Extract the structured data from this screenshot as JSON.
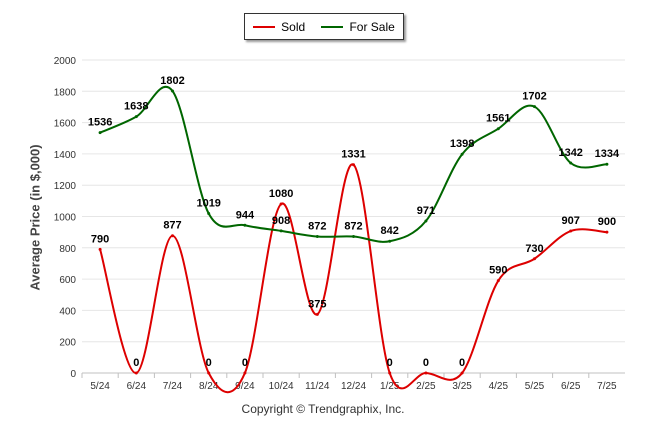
{
  "chart_data": {
    "type": "line",
    "categories": [
      "5/24",
      "6/24",
      "7/24",
      "8/24",
      "9/24",
      "10/24",
      "11/24",
      "12/24",
      "1/25",
      "2/25",
      "3/25",
      "4/25",
      "5/25",
      "6/25",
      "7/25"
    ],
    "ylabel": "Average Price (in $,000)",
    "ylim": [
      0,
      2000
    ],
    "yticks": [
      0,
      200,
      400,
      600,
      800,
      1000,
      1200,
      1400,
      1600,
      1800,
      2000
    ],
    "grid": true,
    "legend": "top-center",
    "series": [
      {
        "name": "Sold",
        "color": "#dd0000",
        "values": [
          790,
          0,
          877,
          0,
          0,
          1080,
          375,
          1331,
          0,
          0,
          0,
          590,
          730,
          907,
          900
        ],
        "labels": [
          "790",
          "0",
          "877",
          "0",
          "0",
          "1080",
          "375",
          "1331",
          "0",
          "0",
          "0",
          "590",
          "730",
          "907",
          "900"
        ]
      },
      {
        "name": "For Sale",
        "color": "#006600",
        "values": [
          1536,
          1638,
          1802,
          1019,
          944,
          908,
          872,
          872,
          842,
          971,
          1398,
          1561,
          1702,
          1342,
          1334
        ],
        "labels": [
          "1536",
          "1638",
          "1802",
          "1019",
          "944",
          "908",
          "872",
          "872",
          "842",
          "971",
          "1398",
          "1561",
          "1702",
          "1342",
          "1334"
        ]
      }
    ]
  },
  "footer": {
    "copyright": "Copyright © Trendgraphix, Inc."
  }
}
